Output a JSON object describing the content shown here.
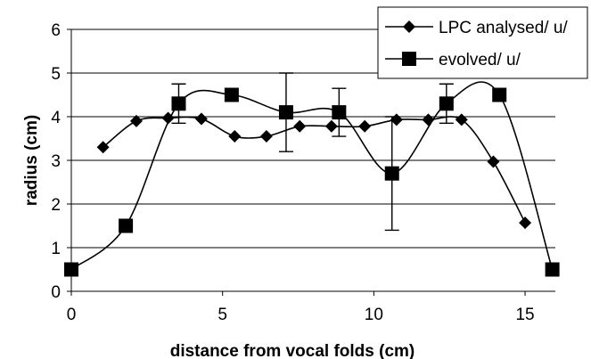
{
  "chart_data": {
    "type": "line",
    "xlabel": "distance from vocal folds (cm)",
    "ylabel": "radius (cm)",
    "xlim": [
      0,
      16
    ],
    "ylim": [
      0,
      6
    ],
    "x_ticks": [
      0,
      5,
      10,
      15
    ],
    "y_ticks": [
      0,
      1,
      2,
      3,
      4,
      5,
      6
    ],
    "grid": "horizontal",
    "legend_position": "top-right",
    "series": [
      {
        "name": "LPC analysed/ u/",
        "marker": "diamond",
        "color": "#000000",
        "smooth": true,
        "points": [
          {
            "x": 1.05,
            "y": 3.3
          },
          {
            "x": 2.15,
            "y": 3.9
          },
          {
            "x": 3.2,
            "y": 3.97
          },
          {
            "x": 4.3,
            "y": 3.95
          },
          {
            "x": 5.4,
            "y": 3.55
          },
          {
            "x": 6.45,
            "y": 3.55
          },
          {
            "x": 7.55,
            "y": 3.78
          },
          {
            "x": 8.6,
            "y": 3.78
          },
          {
            "x": 9.7,
            "y": 3.78
          },
          {
            "x": 10.75,
            "y": 3.93
          },
          {
            "x": 11.8,
            "y": 3.93
          },
          {
            "x": 12.9,
            "y": 3.93
          },
          {
            "x": 13.95,
            "y": 2.97
          },
          {
            "x": 15.0,
            "y": 1.57
          }
        ]
      },
      {
        "name": "evolved/ u/",
        "marker": "square",
        "color": "#000000",
        "smooth": true,
        "points": [
          {
            "x": 0.0,
            "y": 0.5
          },
          {
            "x": 1.8,
            "y": 1.5
          },
          {
            "x": 3.55,
            "y": 4.3,
            "err": 0.45
          },
          {
            "x": 5.3,
            "y": 4.5
          },
          {
            "x": 7.1,
            "y": 4.1,
            "err": 0.9
          },
          {
            "x": 8.85,
            "y": 4.1,
            "err": 0.55
          },
          {
            "x": 10.6,
            "y": 2.7,
            "err": 1.3
          },
          {
            "x": 12.4,
            "y": 4.3,
            "err": 0.45
          },
          {
            "x": 14.15,
            "y": 4.5
          },
          {
            "x": 15.9,
            "y": 0.5
          }
        ]
      }
    ]
  }
}
